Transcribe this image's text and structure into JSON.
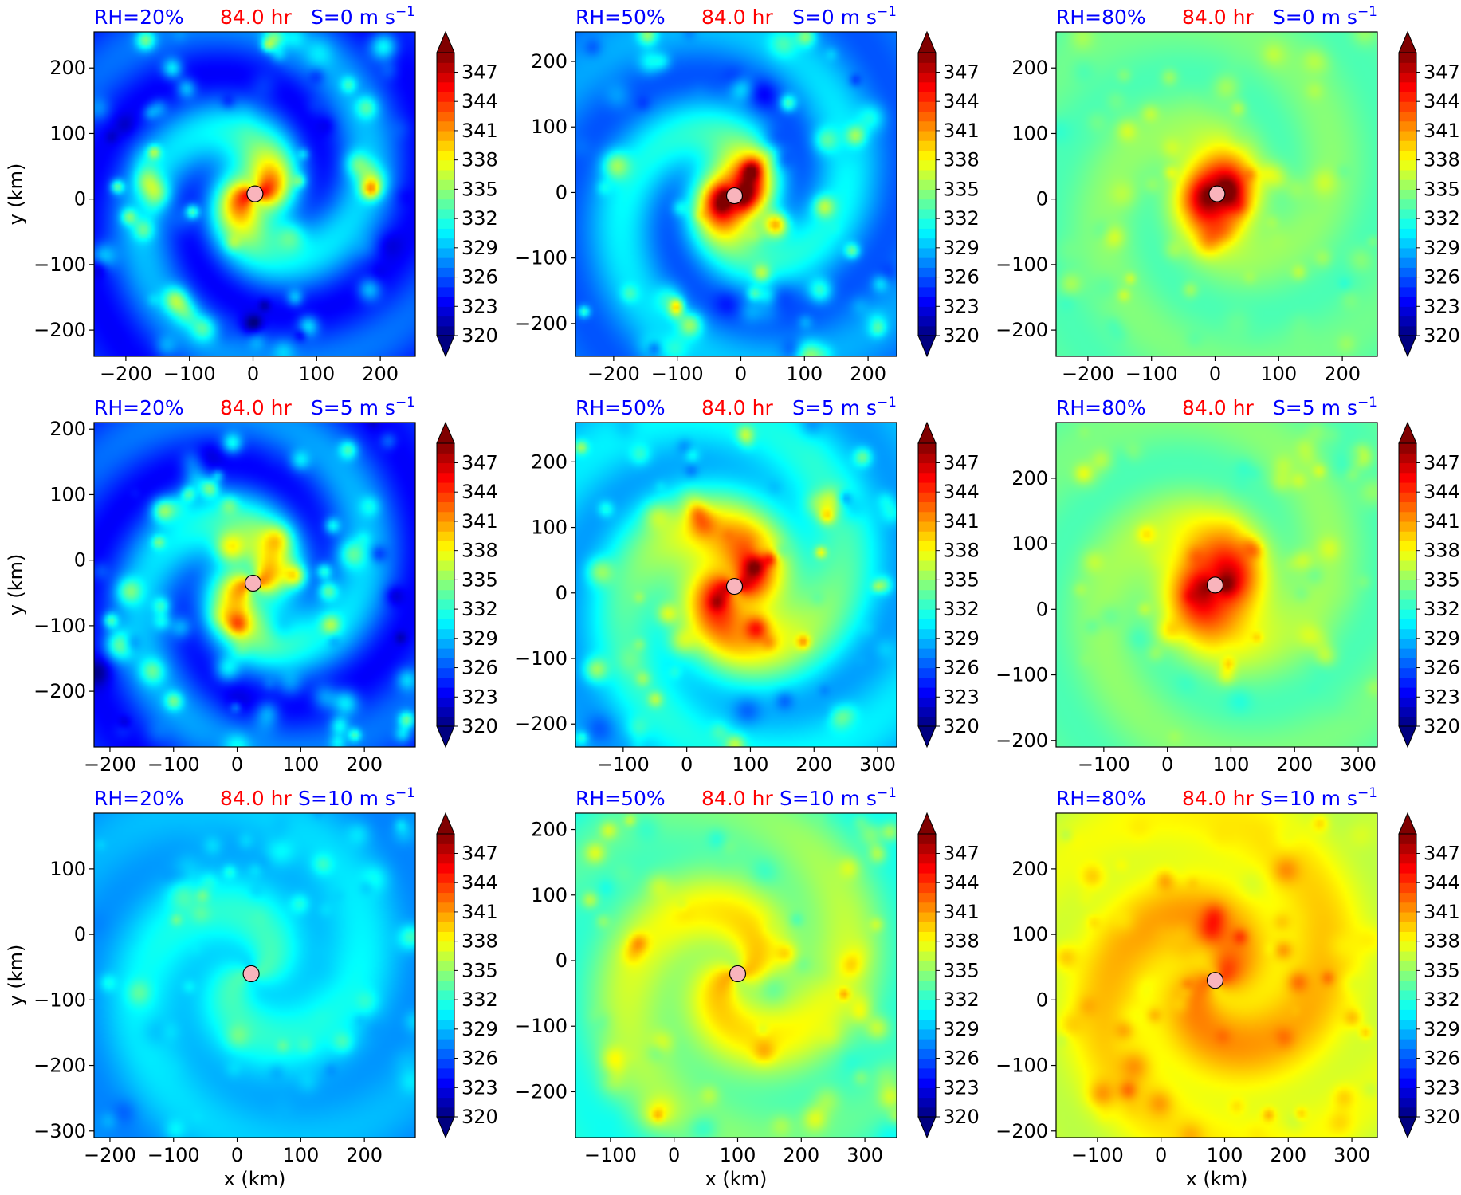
{
  "colors": {
    "rh_title": "#0000ff",
    "time_title": "#ff0000",
    "shear_title": "#0000ff",
    "center_marker": "#f9b4bc",
    "colormap": "jet"
  },
  "chart_data": {
    "type": "heatmap",
    "shared": {
      "time_label": "84.0 hr",
      "x_label": "x (km)",
      "y_label": "y (km)",
      "colorbar": {
        "vmin": 320,
        "vmax": 349,
        "extend": "both",
        "ticks": [
          "347",
          "344",
          "341",
          "338",
          "335",
          "332",
          "329",
          "326",
          "323",
          "320"
        ]
      }
    },
    "panels": [
      {
        "row": 0,
        "col": 0,
        "rh": "RH=20%",
        "shear": "S=0 m s",
        "shear_exp": "−1",
        "xlim": [
          -250,
          255
        ],
        "ylim": [
          -240,
          255
        ],
        "xticks": [
          "−200",
          "−100",
          "0",
          "100",
          "200"
        ],
        "yticks": [
          "200",
          "100",
          "0",
          "−100",
          "−200"
        ],
        "center": [
          3,
          8
        ],
        "mean_theta": 323.5,
        "core_theta": 338,
        "core_radius": 45,
        "band_amp": 8,
        "band_width": 230,
        "show_xlabel": false,
        "show_ylabel": true
      },
      {
        "row": 0,
        "col": 1,
        "rh": "RH=50%",
        "shear": "S=0 m s",
        "shear_exp": "−1",
        "xlim": [
          -260,
          245
        ],
        "ylim": [
          -250,
          245
        ],
        "xticks": [
          "−200",
          "−100",
          "0",
          "100",
          "200"
        ],
        "yticks": [
          "200",
          "100",
          "0",
          "−100",
          "−200"
        ],
        "center": [
          -10,
          -5
        ],
        "mean_theta": 326,
        "core_theta": 346,
        "core_radius": 40,
        "band_amp": 7,
        "band_width": 210,
        "show_xlabel": false,
        "show_ylabel": false
      },
      {
        "row": 0,
        "col": 2,
        "rh": "RH=80%",
        "shear": "S=0 m s",
        "shear_exp": "−1",
        "xlim": [
          -250,
          255
        ],
        "ylim": [
          -240,
          255
        ],
        "xticks": [
          "−200",
          "−100",
          "0",
          "100",
          "200"
        ],
        "yticks": [
          "200",
          "100",
          "0",
          "−100",
          "−200"
        ],
        "center": [
          3,
          8
        ],
        "mean_theta": 333,
        "core_theta": 348.5,
        "core_radius": 40,
        "band_amp": 2.5,
        "band_width": 240,
        "show_xlabel": false,
        "show_ylabel": false
      },
      {
        "row": 1,
        "col": 0,
        "rh": "RH=20%",
        "shear": "S=5 m s",
        "shear_exp": "−1",
        "xlim": [
          -225,
          280
        ],
        "ylim": [
          -285,
          210
        ],
        "xticks": [
          "−200",
          "−100",
          "0",
          "100",
          "200"
        ],
        "yticks": [
          "200",
          "100",
          "0",
          "−100",
          "−200"
        ],
        "center": [
          25,
          -35
        ],
        "mean_theta": 323.5,
        "core_theta": 334,
        "core_radius": 60,
        "band_amp": 8,
        "band_width": 230,
        "show_xlabel": false,
        "show_ylabel": true
      },
      {
        "row": 1,
        "col": 1,
        "rh": "RH=50%",
        "shear": "S=5 m s",
        "shear_exp": "−1",
        "xlim": [
          -175,
          330
        ],
        "ylim": [
          -235,
          260
        ],
        "xticks": [
          "−100",
          "0",
          "100",
          "200",
          "300"
        ],
        "yticks": [
          "200",
          "100",
          "0",
          "−100",
          "−200"
        ],
        "center": [
          75,
          10
        ],
        "mean_theta": 328,
        "core_theta": 341,
        "core_radius": 80,
        "band_amp": 6,
        "band_width": 230,
        "show_xlabel": false,
        "show_ylabel": false
      },
      {
        "row": 1,
        "col": 2,
        "rh": "RH=80%",
        "shear": "S=5 m s",
        "shear_exp": "−1",
        "xlim": [
          -175,
          330
        ],
        "ylim": [
          -210,
          285
        ],
        "xticks": [
          "−100",
          "0",
          "100",
          "200",
          "300"
        ],
        "yticks": [
          "200",
          "100",
          "0",
          "−100",
          "−200"
        ],
        "center": [
          75,
          37
        ],
        "mean_theta": 333,
        "core_theta": 346,
        "core_radius": 55,
        "band_amp": 3,
        "band_width": 240,
        "show_xlabel": false,
        "show_ylabel": false
      },
      {
        "row": 2,
        "col": 0,
        "rh": "RH=20%",
        "shear": "S=10 m s",
        "shear_exp": "−1",
        "xlim": [
          -225,
          280
        ],
        "ylim": [
          -310,
          185
        ],
        "xticks": [
          "−200",
          "−100",
          "0",
          "100",
          "200"
        ],
        "yticks": [
          "100",
          "0",
          "−100",
          "−200",
          "−300"
        ],
        "center": [
          22,
          -60
        ],
        "mean_theta": 327,
        "core_theta": 330,
        "core_radius": 150,
        "band_amp": 3,
        "band_width": 260,
        "show_xlabel": true,
        "show_ylabel": true
      },
      {
        "row": 2,
        "col": 1,
        "rh": "RH=50%",
        "shear": "S=10 m s",
        "shear_exp": "−1",
        "xlim": [
          -155,
          350
        ],
        "ylim": [
          -270,
          225
        ],
        "xticks": [
          "−100",
          "0",
          "100",
          "200",
          "300"
        ],
        "yticks": [
          "200",
          "100",
          "0",
          "−100",
          "−200"
        ],
        "center": [
          100,
          -20
        ],
        "mean_theta": 330,
        "core_theta": 336,
        "core_radius": 180,
        "band_amp": 4,
        "band_width": 260,
        "show_xlabel": true,
        "show_ylabel": false
      },
      {
        "row": 2,
        "col": 2,
        "rh": "RH=80%",
        "shear": "S=10 m s",
        "shear_exp": "−1",
        "xlim": [
          -165,
          340
        ],
        "ylim": [
          -210,
          285
        ],
        "xticks": [
          "−100",
          "0",
          "100",
          "200",
          "300"
        ],
        "yticks": [
          "200",
          "100",
          "0",
          "−100",
          "−200"
        ],
        "center": [
          85,
          30
        ],
        "mean_theta": 335,
        "core_theta": 339,
        "core_radius": 200,
        "band_amp": 3,
        "band_width": 260,
        "show_xlabel": true,
        "show_ylabel": false
      }
    ]
  }
}
